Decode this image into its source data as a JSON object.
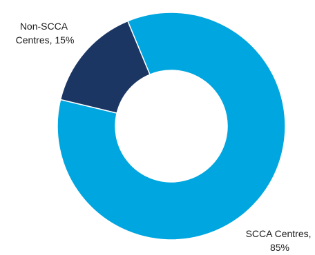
{
  "chart_data": {
    "type": "pie",
    "style": "donut",
    "title": "",
    "slices": [
      {
        "name": "SCCA Centres",
        "value": 85,
        "color": "#00A6DF",
        "label_lines": [
          "SCCA Centres,",
          "85%"
        ]
      },
      {
        "name": "Non-SCCA Centres",
        "value": 15,
        "color": "#1C3664",
        "label_lines": [
          "Non-SCCA",
          "Centres, 15%"
        ]
      }
    ],
    "legend": "none"
  }
}
